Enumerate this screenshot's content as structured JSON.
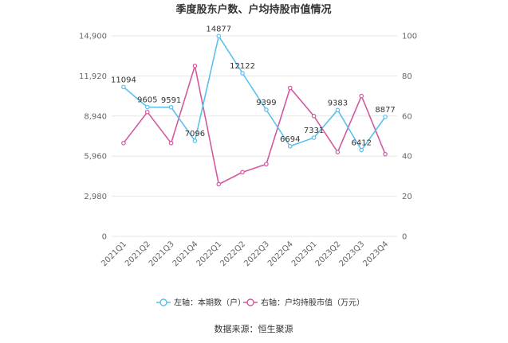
{
  "chart_data": {
    "type": "line",
    "title": "季度股东户数、户均持股市值情况",
    "categories": [
      "2021Q1",
      "2021Q2",
      "2021Q3",
      "2021Q4",
      "2022Q1",
      "2022Q2",
      "2022Q3",
      "2022Q4",
      "2023Q1",
      "2023Q2",
      "2023Q3",
      "2023Q4"
    ],
    "y_left": {
      "ticks": [
        "0",
        "2,980",
        "5,960",
        "8,940",
        "11,920",
        "14,900"
      ],
      "range": [
        0,
        14900
      ]
    },
    "y_right": {
      "ticks": [
        "0",
        "20",
        "40",
        "60",
        "80",
        "100"
      ],
      "range": [
        0,
        100
      ]
    },
    "series": [
      {
        "name": "左轴：本期数（户）",
        "axis": "left",
        "color": "#5bc0eb",
        "values": [
          11094,
          9605,
          9591,
          7096,
          14877,
          12122,
          9399,
          6694,
          7331,
          9383,
          6412,
          8877
        ],
        "labels": [
          "11094",
          "9605",
          "9591",
          "7096",
          "14877",
          "12122",
          "9399",
          "6694",
          "7331",
          "9383",
          "6412",
          "8877"
        ]
      },
      {
        "name": "右轴：户均持股市值（万元）",
        "axis": "right",
        "color": "#d4589f",
        "values": [
          46.5,
          62,
          46.5,
          85,
          26,
          32,
          36,
          74,
          60,
          42,
          70,
          41
        ]
      }
    ],
    "legend_position": "bottom",
    "grid": true
  },
  "footer": {
    "source": "数据来源：恒生聚源"
  }
}
